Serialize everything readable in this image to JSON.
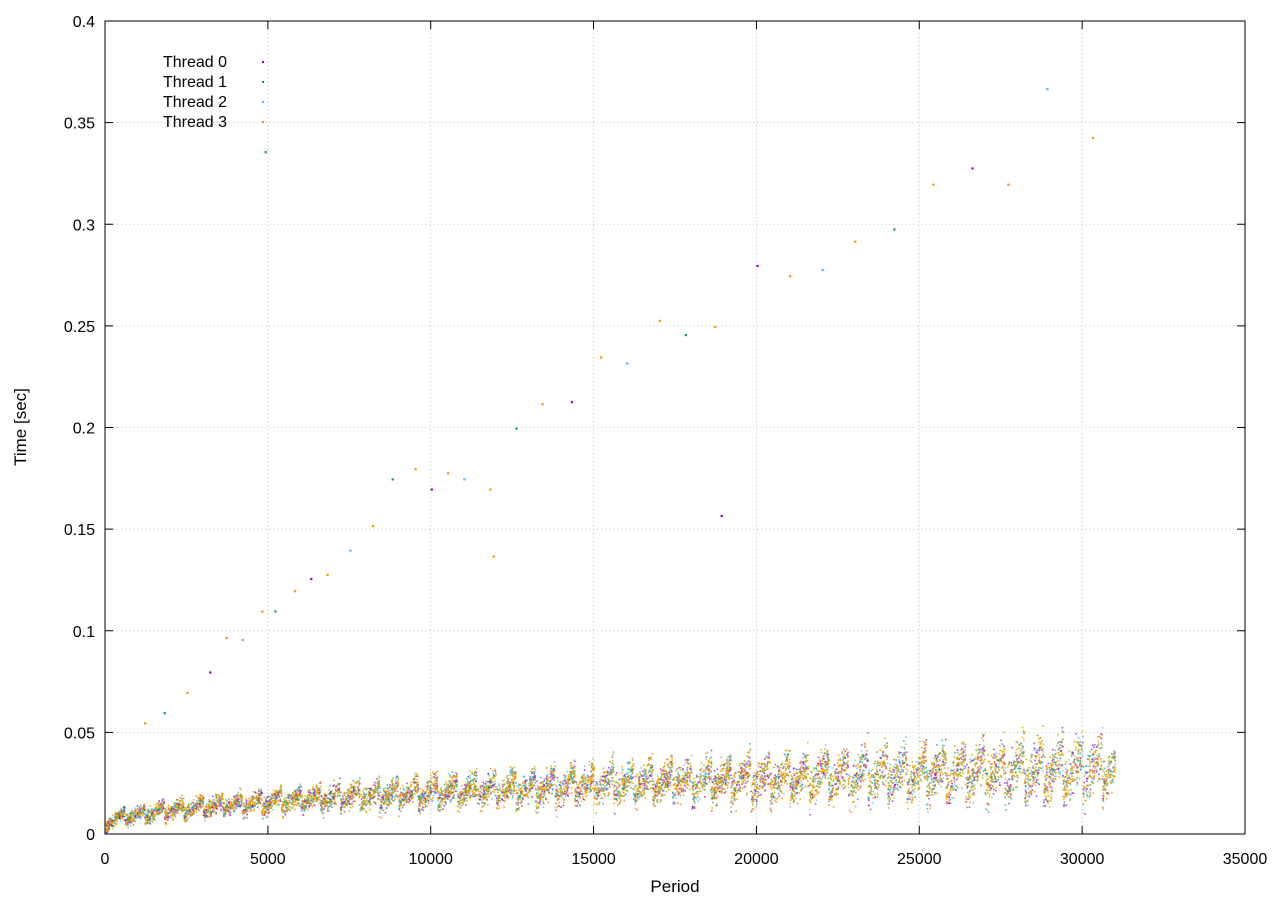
{
  "chart_data": {
    "type": "scatter",
    "title": "",
    "xlabel": "Period",
    "ylabel": "Time [sec]",
    "xlim": [
      0,
      35000
    ],
    "ylim": [
      0,
      0.4
    ],
    "x_ticks": [
      0,
      5000,
      10000,
      15000,
      20000,
      25000,
      30000,
      35000
    ],
    "y_ticks": [
      0,
      0.05,
      0.1,
      0.15,
      0.2,
      0.25,
      0.3,
      0.35,
      0.4
    ],
    "x_tick_labels": [
      "0",
      "5000",
      "10000",
      "15000",
      "20000",
      "25000",
      "30000",
      "35000"
    ],
    "y_tick_labels": [
      "0",
      "0.05",
      "0.1",
      "0.15",
      "0.2",
      "0.25",
      "0.3",
      "0.35",
      "0.4"
    ],
    "grid": true,
    "legend_position": "top-left",
    "series": [
      {
        "name": "Thread 0",
        "color": "#9400d3",
        "marker": "dot"
      },
      {
        "name": "Thread 1",
        "color": "#009e73",
        "marker": "dot"
      },
      {
        "name": "Thread 2",
        "color": "#56b4e9",
        "marker": "dot"
      },
      {
        "name": "Thread 3",
        "color": "#e69f00",
        "marker": "dot"
      }
    ],
    "bulk_band": {
      "x_range": [
        0,
        31000
      ],
      "segment_period": 600,
      "baseline_start": 0.005,
      "baseline_end": 0.033,
      "sawtooth_amplitude": 0.02,
      "note_envelope_top": [
        [
          0,
          0.012
        ],
        [
          5000,
          0.03
        ],
        [
          10000,
          0.04
        ],
        [
          15000,
          0.05
        ],
        [
          20000,
          0.055
        ],
        [
          25000,
          0.065
        ],
        [
          29000,
          0.08
        ],
        [
          31000,
          0.06
        ]
      ]
    },
    "outliers": [
      [
        1200,
        0.055
      ],
      [
        1800,
        0.06
      ],
      [
        2500,
        0.07
      ],
      [
        3200,
        0.08
      ],
      [
        3700,
        0.097
      ],
      [
        4200,
        0.096
      ],
      [
        4800,
        0.11
      ],
      [
        5200,
        0.11
      ],
      [
        5800,
        0.12
      ],
      [
        6300,
        0.126
      ],
      [
        6800,
        0.128
      ],
      [
        7500,
        0.14
      ],
      [
        8200,
        0.152
      ],
      [
        8800,
        0.175
      ],
      [
        9500,
        0.18
      ],
      [
        10000,
        0.17
      ],
      [
        10500,
        0.178
      ],
      [
        11000,
        0.175
      ],
      [
        11800,
        0.17
      ],
      [
        12600,
        0.2
      ],
      [
        13400,
        0.212
      ],
      [
        14300,
        0.213
      ],
      [
        15200,
        0.235
      ],
      [
        16000,
        0.232
      ],
      [
        17000,
        0.253
      ],
      [
        17800,
        0.246
      ],
      [
        18700,
        0.25
      ],
      [
        20000,
        0.28
      ],
      [
        21000,
        0.275
      ],
      [
        22000,
        0.278
      ],
      [
        23000,
        0.292
      ],
      [
        24200,
        0.298
      ],
      [
        25400,
        0.32
      ],
      [
        26600,
        0.328
      ],
      [
        27700,
        0.32
      ],
      [
        28900,
        0.367
      ],
      [
        30300,
        0.343
      ],
      [
        4900,
        0.336
      ],
      [
        11900,
        0.137
      ],
      [
        18900,
        0.157
      ]
    ]
  }
}
